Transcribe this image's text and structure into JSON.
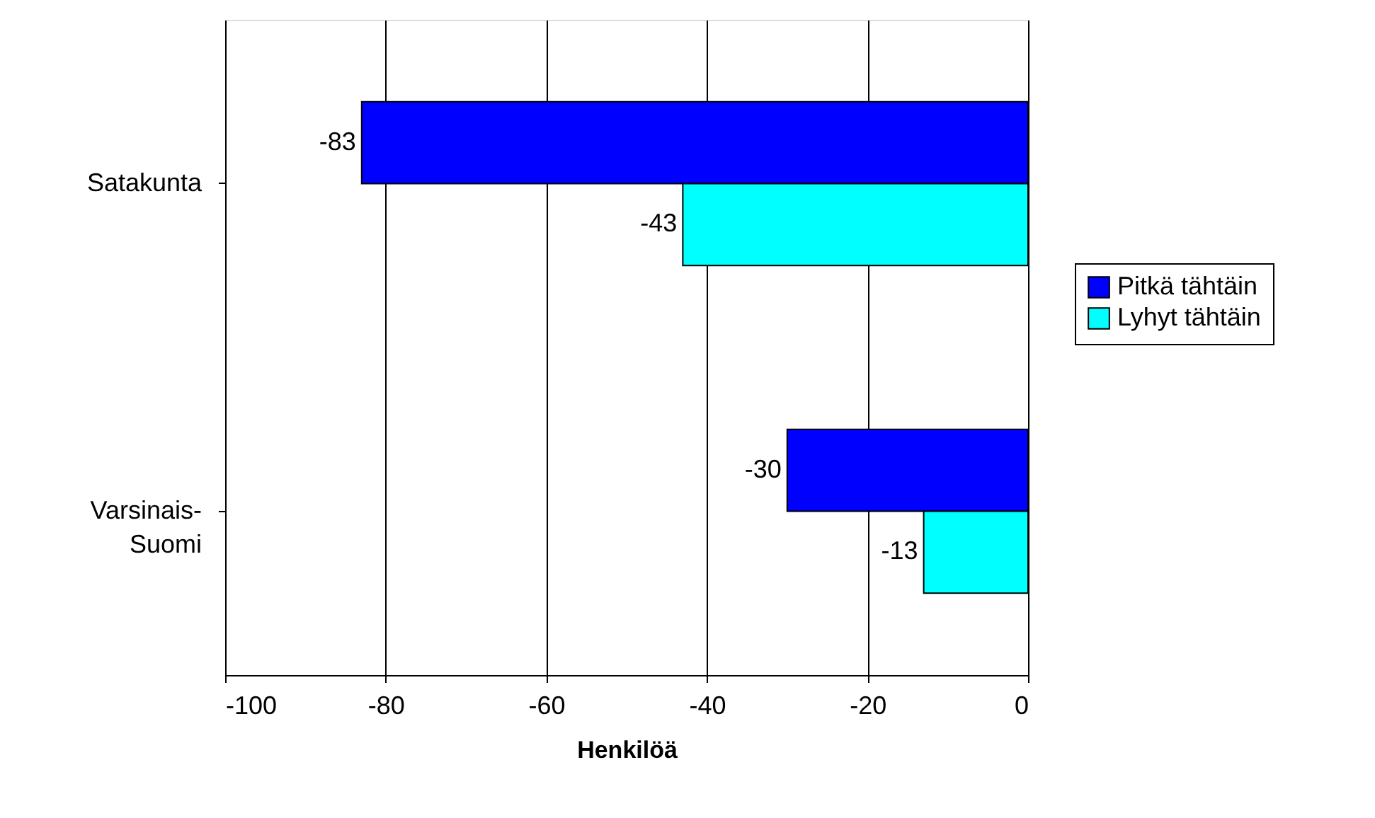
{
  "chart_data": {
    "type": "bar",
    "orientation": "horizontal",
    "xlabel": "Henkilöä",
    "categories": [
      "Satakunta",
      "Varsinais-\nSuomi"
    ],
    "series": [
      {
        "name": "Pitkä tähtäin",
        "color": "#0000ff",
        "values": [
          -83,
          -30
        ]
      },
      {
        "name": "Lyhyt tähtäin",
        "color": "#00ffff",
        "values": [
          -43,
          -13
        ]
      }
    ],
    "xlim": [
      -100,
      0
    ],
    "xticks": [
      -100,
      -80,
      -60,
      -40,
      -20,
      0
    ],
    "grid": "x",
    "legend": "right",
    "data_labels": true
  }
}
